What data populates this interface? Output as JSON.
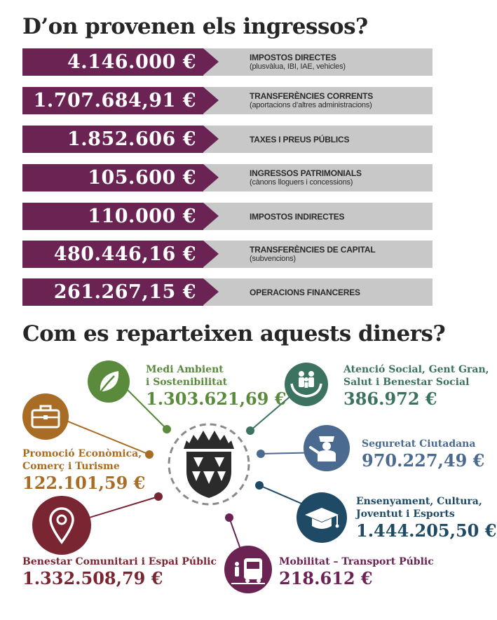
{
  "income": {
    "title": "D’on provenen els ingressos?",
    "items": [
      {
        "amount": "4.146.000 €",
        "label": "IMPOSTOS DIRECTES",
        "sub": "(plusvàlua, IBI, IAE, vehicles)"
      },
      {
        "amount": "1.707.684,91 €",
        "label": "TRANSFERÈNCIES CORRENTS",
        "sub": "(aportacions d’altres administracions)"
      },
      {
        "amount": "1.852.606 €",
        "label": "TAXES I PREUS PÚBLICS",
        "sub": ""
      },
      {
        "amount": "105.600 €",
        "label": "INGRESSOS PATRIMONIALS",
        "sub": "(cànons lloguers i concessions)"
      },
      {
        "amount": "110.000 €",
        "label": "IMPOSTOS INDIRECTES",
        "sub": ""
      },
      {
        "amount": "480.446,16 €",
        "label": "TRANSFERÈNCIES DE CAPITAL",
        "sub": "(subvencions)"
      },
      {
        "amount": "261.267,15 €",
        "label": "OPERACIONS FINANCERES",
        "sub": ""
      }
    ]
  },
  "spending": {
    "title": "Com es reparteixen aquests diners?",
    "center_icon": "municipal-coat-of-arms-icon",
    "categories": [
      {
        "line1": "Medi Ambient",
        "line2": "i Sostenibilitat",
        "amount": "1.303.621,69 €",
        "color": "#5a8a3c",
        "icon": "leaf-icon"
      },
      {
        "line1": "Atenció Social, Gent Gran,",
        "line2": "Salut i Benestar Social",
        "amount": "386.972 €",
        "color": "#3c7360",
        "icon": "family-hands-icon"
      },
      {
        "line1": "Seguretat Ciutadana",
        "line2": "",
        "amount": "970.227,49 €",
        "color": "#4a6a90",
        "icon": "police-officer-icon"
      },
      {
        "line1": "Ensenyament, Cultura,",
        "line2": "Joventut i Esports",
        "amount": "1.444.205,50 €",
        "color": "#1e4a66",
        "icon": "graduation-cap-icon"
      },
      {
        "line1": "Mobilitat – Transport Públic",
        "line2": "",
        "amount": "218.612 €",
        "color": "#6a2353",
        "icon": "bus-icon"
      },
      {
        "line1": "Benestar Comunitari i Espai Públic",
        "line2": "",
        "amount": "1.332.508,79 €",
        "color": "#7a2632",
        "icon": "map-pin-icon"
      },
      {
        "line1": "Promoció Econòmica,",
        "line2": "Comerç i Turisme",
        "amount": "122.101,59 €",
        "color": "#a86c25",
        "icon": "briefcase-icon"
      }
    ]
  }
}
